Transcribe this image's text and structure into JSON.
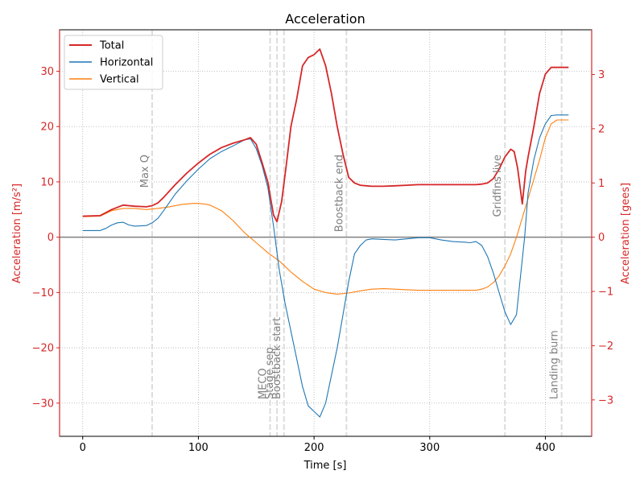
{
  "chart_data": {
    "type": "line",
    "title": "Acceleration",
    "xlabel": "Time [s]",
    "ylabel_left": "Acceleration [m/s²]",
    "ylabel_right": "Acceleration [gees]",
    "xlim": [
      -20,
      440
    ],
    "ylim": [
      -36,
      37.5
    ],
    "ylim_right_gees": [
      -3.67,
      3.82
    ],
    "xticks": [
      0,
      100,
      200,
      300,
      400
    ],
    "yticks": [
      -30,
      -20,
      -10,
      0,
      10,
      20,
      30
    ],
    "yticks_right": [
      -3,
      -2,
      -1,
      0,
      1,
      2,
      3
    ],
    "grid": true,
    "legend": "upper left",
    "colors": {
      "Total": "#d62728",
      "Horizontal": "#1f77b4",
      "Vertical": "#ff7f0e",
      "left_axis": "#d62728",
      "right_axis": "#d62728",
      "events": "#808080",
      "zero_line": "#808080"
    },
    "series": [
      {
        "name": "Total",
        "x": [
          0,
          15,
          25,
          35,
          45,
          55,
          60,
          65,
          70,
          80,
          90,
          100,
          110,
          120,
          130,
          140,
          145,
          150,
          155,
          160,
          165,
          168,
          172,
          176,
          180,
          185,
          190,
          195,
          200,
          205,
          210,
          215,
          220,
          225,
          230,
          235,
          240,
          245,
          250,
          260,
          270,
          280,
          290,
          300,
          310,
          320,
          330,
          340,
          345,
          350,
          355,
          360,
          365,
          370,
          373,
          376,
          380,
          383,
          385,
          390,
          395,
          400,
          405,
          410,
          415,
          420
        ],
        "y": [
          3.8,
          3.9,
          5.0,
          5.8,
          5.6,
          5.5,
          5.7,
          6.2,
          7.2,
          9.5,
          11.6,
          13.4,
          15.0,
          16.2,
          17.0,
          17.6,
          18.0,
          16.8,
          13.5,
          10.0,
          4.0,
          2.8,
          6.5,
          13.0,
          20.0,
          25.0,
          31.0,
          32.5,
          33.0,
          34.0,
          31.0,
          26.0,
          20.0,
          15.0,
          10.8,
          9.8,
          9.4,
          9.3,
          9.2,
          9.2,
          9.3,
          9.4,
          9.5,
          9.5,
          9.5,
          9.5,
          9.5,
          9.5,
          9.6,
          9.8,
          10.6,
          12.3,
          14.5,
          15.9,
          15.5,
          12.5,
          6.0,
          12.0,
          14.5,
          20.0,
          26.0,
          29.5,
          30.7,
          30.7,
          30.7,
          30.7
        ]
      },
      {
        "name": "Horizontal",
        "x": [
          0,
          15,
          20,
          25,
          30,
          35,
          40,
          45,
          55,
          60,
          65,
          70,
          80,
          90,
          100,
          110,
          120,
          130,
          140,
          145,
          150,
          155,
          160,
          165,
          170,
          175,
          180,
          185,
          190,
          195,
          200,
          205,
          210,
          215,
          220,
          225,
          230,
          235,
          240,
          245,
          250,
          260,
          270,
          280,
          290,
          300,
          310,
          320,
          330,
          335,
          340,
          345,
          350,
          355,
          360,
          365,
          370,
          375,
          378,
          382,
          385,
          390,
          395,
          400,
          405,
          410,
          415,
          420
        ],
        "y": [
          1.2,
          1.2,
          1.6,
          2.2,
          2.6,
          2.7,
          2.2,
          2.0,
          2.1,
          2.6,
          3.4,
          4.8,
          7.8,
          10.2,
          12.3,
          14.2,
          15.5,
          16.5,
          17.6,
          17.8,
          16.0,
          13.0,
          9.0,
          2.0,
          -6.0,
          -12.0,
          -17.0,
          -22.0,
          -27.0,
          -30.5,
          -31.5,
          -32.5,
          -30.0,
          -25.0,
          -20.0,
          -14.0,
          -8.0,
          -3.0,
          -1.5,
          -0.5,
          -0.3,
          -0.4,
          -0.5,
          -0.3,
          -0.1,
          -0.1,
          -0.5,
          -0.8,
          -0.9,
          -1.0,
          -0.8,
          -1.5,
          -3.5,
          -6.5,
          -10.0,
          -13.5,
          -15.8,
          -14.0,
          -8.0,
          0.0,
          8.0,
          14.0,
          18.0,
          20.5,
          22.0,
          22.1,
          22.1,
          22.1
        ]
      },
      {
        "name": "Vertical",
        "x": [
          0,
          15,
          25,
          35,
          45,
          55,
          65,
          75,
          85,
          95,
          100,
          105,
          110,
          120,
          130,
          140,
          150,
          160,
          170,
          180,
          190,
          200,
          210,
          220,
          230,
          240,
          250,
          260,
          270,
          280,
          290,
          300,
          310,
          320,
          330,
          340,
          345,
          350,
          355,
          360,
          365,
          370,
          375,
          380,
          385,
          390,
          395,
          400,
          405,
          410,
          415,
          420
        ],
        "y": [
          3.7,
          3.8,
          4.8,
          5.2,
          5.2,
          5.0,
          5.2,
          5.5,
          5.9,
          6.1,
          6.1,
          6.0,
          5.8,
          4.8,
          3.0,
          0.8,
          -1.0,
          -2.8,
          -4.3,
          -6.3,
          -8.0,
          -9.4,
          -10.0,
          -10.3,
          -10.1,
          -9.7,
          -9.4,
          -9.3,
          -9.4,
          -9.5,
          -9.6,
          -9.6,
          -9.6,
          -9.6,
          -9.6,
          -9.6,
          -9.4,
          -9.0,
          -8.2,
          -7.0,
          -5.2,
          -3.0,
          0.0,
          3.5,
          7.0,
          10.5,
          14.0,
          18.0,
          20.5,
          21.2,
          21.2,
          21.2
        ]
      }
    ],
    "events": [
      {
        "label": "Max Q",
        "x": 60,
        "placement": "upper"
      },
      {
        "label": "MECO",
        "x": 162,
        "placement": "lower"
      },
      {
        "label": "Stage sep",
        "x": 168,
        "placement": "lower"
      },
      {
        "label": "Boostback start",
        "x": 174,
        "placement": "lower"
      },
      {
        "label": "Boostback end",
        "x": 228,
        "placement": "upper"
      },
      {
        "label": "Gridfins live",
        "x": 365,
        "placement": "upper"
      },
      {
        "label": "Landing burn",
        "x": 414,
        "placement": "lower"
      }
    ]
  }
}
